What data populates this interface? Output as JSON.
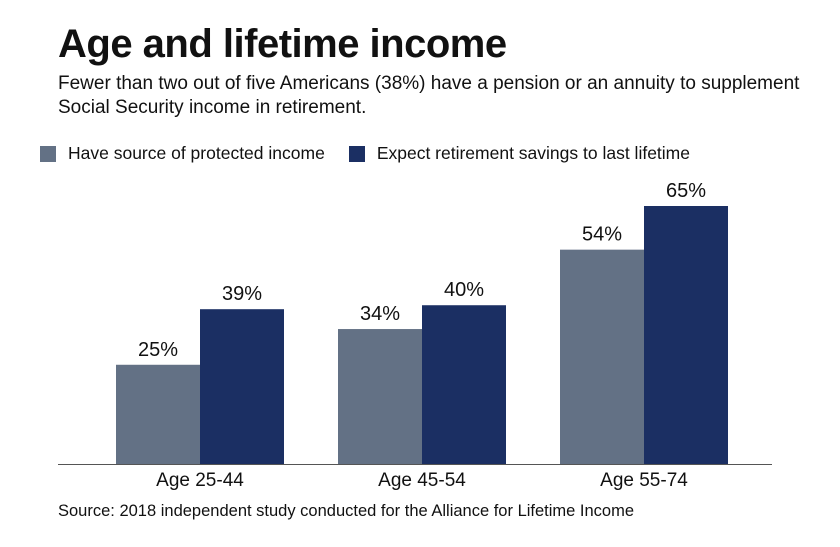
{
  "title": "Age and lifetime income",
  "subtitle": "Fewer than two out of five Americans (38%) have a pension or an annuity to supplement Social Security income in retirement.",
  "source": "Source: 2018 independent study conducted for the Alliance for Lifetime Income",
  "colors": {
    "series1": "#637185",
    "series2": "#1b2f63",
    "axis": "#555555"
  },
  "chart_data": {
    "type": "bar",
    "categories": [
      "Age 25-44",
      "Age 45-54",
      "Age 55-74"
    ],
    "series": [
      {
        "name": "Have source of protected income",
        "values": [
          25,
          34,
          54
        ],
        "labels": [
          "25%",
          "34%",
          "54%"
        ]
      },
      {
        "name": "Expect retirement savings to last lifetime",
        "values": [
          39,
          40,
          65
        ],
        "labels": [
          "39%",
          "40%",
          "65%"
        ]
      }
    ],
    "ylim": [
      0,
      65
    ],
    "grid": false,
    "legend": "top-left",
    "xlabel": "",
    "ylabel": ""
  }
}
